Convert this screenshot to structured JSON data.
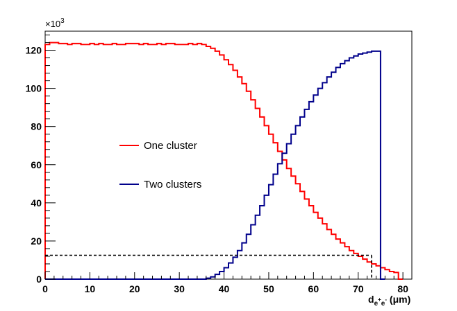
{
  "chart_data": {
    "type": "line",
    "step": true,
    "x_unit_label": {
      "main": "d",
      "sub": "e",
      "sup1": "+",
      "sub2": "e",
      "sup2": "-",
      "rest": " (μm)"
    },
    "y_multiplier": {
      "base": "×10",
      "exp": "3"
    },
    "xlim": [
      0,
      82
    ],
    "ylim": [
      0,
      130
    ],
    "x_ticks": [
      "0",
      "10",
      "20",
      "30",
      "40",
      "50",
      "60",
      "70",
      "80"
    ],
    "y_ticks": [
      "0",
      "20",
      "40",
      "60",
      "80",
      "100",
      "120"
    ],
    "grid": false,
    "legend_position": "left-middle",
    "bin_width": 1,
    "series": [
      {
        "name": "One cluster",
        "color": "#ff0000",
        "values": [
          123,
          124,
          124,
          123.5,
          123.5,
          123,
          123.5,
          123.5,
          123,
          123,
          123.5,
          123,
          123.5,
          123,
          123,
          123.5,
          123,
          123,
          123.5,
          123.5,
          123.5,
          123,
          123.5,
          123,
          123,
          123.5,
          123,
          123.5,
          123.5,
          123,
          123,
          123,
          123.5,
          123,
          123.5,
          123,
          122,
          121,
          119.5,
          117.5,
          115,
          112.5,
          109.5,
          106,
          102.5,
          98.5,
          94,
          89.5,
          85,
          80.5,
          76,
          71.5,
          67,
          62.5,
          58,
          54,
          50,
          46,
          42,
          38.5,
          35,
          32,
          29,
          26,
          23.5,
          21,
          19,
          17,
          15,
          13.5,
          12,
          10.5,
          9,
          8,
          7,
          6,
          5,
          4,
          3.5,
          0
        ]
      },
      {
        "name": "Two clusters",
        "color": "#00008b",
        "values": [
          0,
          0,
          0,
          0,
          0,
          0,
          0,
          0,
          0,
          0,
          0,
          0,
          0,
          0,
          0,
          0,
          0,
          0,
          0,
          0,
          0,
          0,
          0,
          0,
          0,
          0,
          0,
          0,
          0,
          0,
          0,
          0,
          0,
          0,
          0,
          0,
          0.5,
          1.2,
          2.5,
          4,
          6,
          8.5,
          11.5,
          15,
          19,
          23.5,
          28.5,
          33.5,
          38.5,
          44,
          49.5,
          55,
          60.5,
          66,
          71,
          76,
          80.5,
          85,
          89,
          93,
          96.5,
          100,
          103,
          106,
          108.5,
          111,
          113,
          114.5,
          116,
          117,
          118,
          118.5,
          119,
          119.5,
          119.5,
          0
        ]
      }
    ],
    "annotation": {
      "style": "dashed",
      "x": 73,
      "y": 12.5
    }
  }
}
